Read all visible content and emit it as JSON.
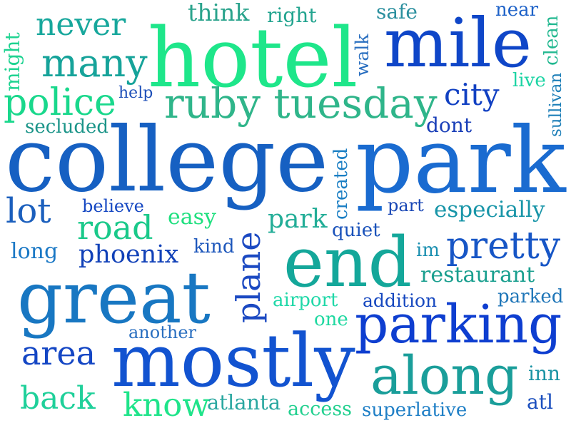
{
  "words": [
    {
      "text": "hotel",
      "color": "#1ee68a"
    },
    {
      "text": "mile",
      "color": "#0f46c8"
    },
    {
      "text": "college",
      "color": "#1660c2"
    },
    {
      "text": "park",
      "color": "#1a6bd0"
    },
    {
      "text": "ruby tuesday",
      "color": "#2fb58a"
    },
    {
      "text": "police",
      "color": "#19d88c"
    },
    {
      "text": "many",
      "color": "#16a39a"
    },
    {
      "text": "never",
      "color": "#17a79c"
    },
    {
      "text": "think",
      "color": "#2aa38c"
    },
    {
      "text": "right",
      "color": "#22a48f"
    },
    {
      "text": "safe",
      "color": "#2a8f9e"
    },
    {
      "text": "near",
      "color": "#1e62c8"
    },
    {
      "text": "clean",
      "color": "#22b890"
    },
    {
      "text": "might",
      "color": "#1fd391"
    },
    {
      "text": "walk",
      "color": "#2a6fc0"
    },
    {
      "text": "help",
      "color": "#1d4fb8"
    },
    {
      "text": "city",
      "color": "#1140c2"
    },
    {
      "text": "live",
      "color": "#1cd4a4"
    },
    {
      "text": "sullivan",
      "color": "#1d7fb8"
    },
    {
      "text": "secluded",
      "color": "#1a9488"
    },
    {
      "text": "dont",
      "color": "#1a3fb8"
    },
    {
      "text": "created",
      "color": "#1b7fc4"
    },
    {
      "text": "believe",
      "color": "#1547c2"
    },
    {
      "text": "lot",
      "color": "#1b5fbd"
    },
    {
      "text": "road",
      "color": "#1ac98a"
    },
    {
      "text": "easy",
      "color": "#1fe07f"
    },
    {
      "text": "park",
      "color": "#22ad97"
    },
    {
      "text": "part",
      "color": "#1846b5"
    },
    {
      "text": "especially",
      "color": "#1895a8"
    },
    {
      "text": "quiet",
      "color": "#1a52ba"
    },
    {
      "text": "plane",
      "color": "#1b49c2"
    },
    {
      "text": "kind",
      "color": "#1c56bb"
    },
    {
      "text": "long",
      "color": "#1a78c5"
    },
    {
      "text": "phoenix",
      "color": "#1141b8"
    },
    {
      "text": "end",
      "color": "#14a79a"
    },
    {
      "text": "im",
      "color": "#1a8fb0"
    },
    {
      "text": "pretty",
      "color": "#1756c6"
    },
    {
      "text": "restaurant",
      "color": "#1a9f8f"
    },
    {
      "text": "great",
      "color": "#1877c2"
    },
    {
      "text": "airport",
      "color": "#1fd8a8"
    },
    {
      "text": "addition",
      "color": "#1547bf"
    },
    {
      "text": "parked",
      "color": "#1f76b8"
    },
    {
      "text": "one",
      "color": "#1ed8a0"
    },
    {
      "text": "parking",
      "color": "#0e3ed0"
    },
    {
      "text": "another",
      "color": "#2a6fc0"
    },
    {
      "text": "area",
      "color": "#1446c4"
    },
    {
      "text": "mostly",
      "color": "#1253d0"
    },
    {
      "text": "along",
      "color": "#1a9e9a"
    },
    {
      "text": "inn",
      "color": "#1b94a4"
    },
    {
      "text": "back",
      "color": "#1fd09a"
    },
    {
      "text": "know",
      "color": "#1fe48a"
    },
    {
      "text": "atlanta",
      "color": "#2aa7a0"
    },
    {
      "text": "access",
      "color": "#22d08f"
    },
    {
      "text": "superlative",
      "color": "#1f7fc6"
    },
    {
      "text": "atl",
      "color": "#1b4fbe"
    }
  ]
}
